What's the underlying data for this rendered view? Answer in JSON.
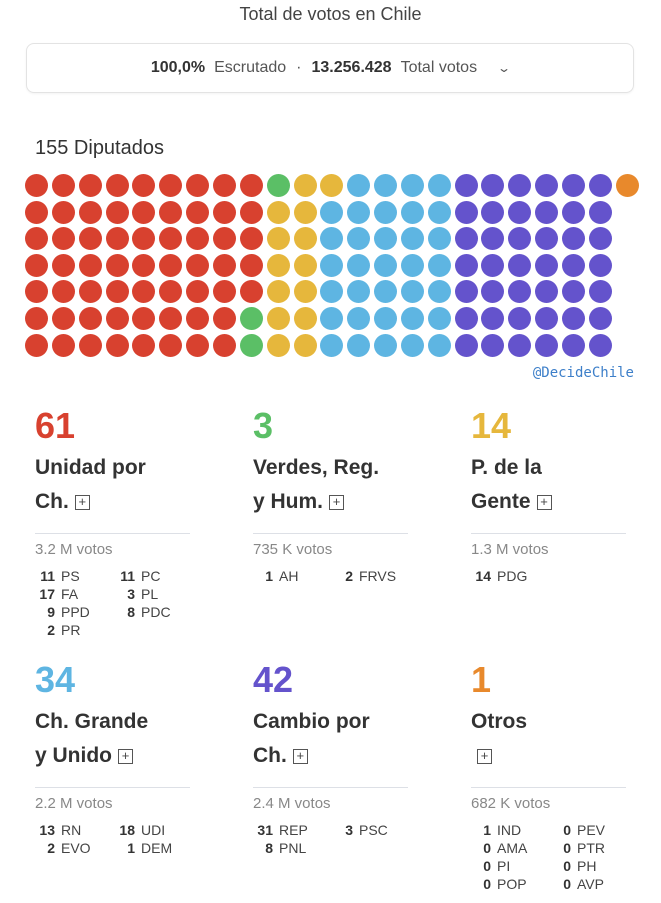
{
  "title": "Total de votos en Chile",
  "summary": {
    "pct": "100,0%",
    "pct_label": "Escrutado",
    "sep": "·",
    "total": "13.256.428",
    "total_label": "Total votos",
    "chevron": "⌄"
  },
  "seats_label": "155 Diputados",
  "watermark": "@DecideChile",
  "rows_in_grid": 7,
  "parties": [
    {
      "seats": "61",
      "name_l1": "Unidad por",
      "name_l2": "Ch.",
      "color": "#d8412f",
      "votes": "3.2 M votos",
      "subs": [
        [
          "11",
          "PS"
        ],
        [
          "11",
          "PC"
        ],
        [
          "17",
          "FA"
        ],
        [
          "3",
          "PL"
        ],
        [
          "9",
          "PPD"
        ],
        [
          "8",
          "PDC"
        ],
        [
          "2",
          "PR"
        ]
      ]
    },
    {
      "seats": "3",
      "name_l1": "Verdes, Reg.",
      "name_l2": "y Hum.",
      "color": "#5bbf66",
      "votes": "735 K votos",
      "subs": [
        [
          "1",
          "AH"
        ],
        [
          "2",
          "FRVS"
        ]
      ]
    },
    {
      "seats": "14",
      "name_l1": "P. de la",
      "name_l2": "Gente",
      "color": "#e6b73c",
      "votes": "1.3 M votos",
      "subs": [
        [
          "14",
          "PDG"
        ]
      ]
    },
    {
      "seats": "34",
      "name_l1": "Ch. Grande",
      "name_l2": "y Unido",
      "color": "#5eb5e2",
      "votes": "2.2 M votos",
      "subs": [
        [
          "13",
          "RN"
        ],
        [
          "18",
          "UDI"
        ],
        [
          "2",
          "EVO"
        ],
        [
          "1",
          "DEM"
        ]
      ]
    },
    {
      "seats": "42",
      "name_l1": "Cambio por",
      "name_l2": "Ch.",
      "color": "#6453cc",
      "votes": "2.4 M votos",
      "subs": [
        [
          "31",
          "REP"
        ],
        [
          "3",
          "PSC"
        ],
        [
          "8",
          "PNL"
        ]
      ]
    },
    {
      "seats": "1",
      "name_l1": "Otros",
      "name_l2": "",
      "color": "#e8892c",
      "votes": "682 K votos",
      "subs": [
        [
          "1",
          "IND"
        ],
        [
          "0",
          "PEV"
        ],
        [
          "0",
          "AMA"
        ],
        [
          "0",
          "PTR"
        ],
        [
          "0",
          "PI"
        ],
        [
          "0",
          "PH"
        ],
        [
          "0",
          "POP"
        ],
        [
          "0",
          "AVP"
        ]
      ]
    }
  ]
}
